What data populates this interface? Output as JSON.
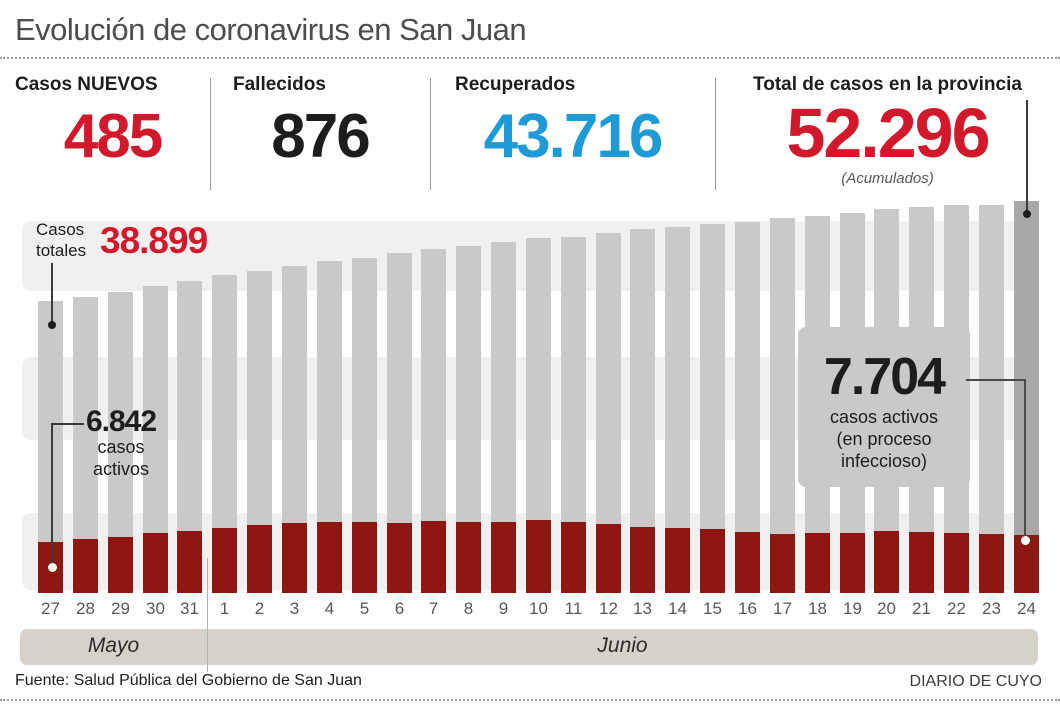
{
  "header": {
    "title": "Evolución de coronavirus en San Juan"
  },
  "stats": [
    {
      "label": "Casos NUEVOS",
      "value": "485",
      "color": "#d2192b"
    },
    {
      "label": "Fallecidos",
      "value": "876",
      "color": "#1d1d1b"
    },
    {
      "label": "Recuperados",
      "value": "43.716",
      "color": "#1e9bd7"
    },
    {
      "label": "Total de casos en la provincia",
      "value": "52.296",
      "note": "(Acumulados)",
      "color": "#d2192b"
    }
  ],
  "chart_data": {
    "type": "bar",
    "categories": [
      "27",
      "28",
      "29",
      "30",
      "31",
      "1",
      "2",
      "3",
      "4",
      "5",
      "6",
      "7",
      "8",
      "9",
      "10",
      "11",
      "12",
      "13",
      "14",
      "15",
      "16",
      "17",
      "18",
      "19",
      "20",
      "21",
      "22",
      "23",
      "24"
    ],
    "series": [
      {
        "name": "Casos totales",
        "color": "#c9c9c9",
        "values": [
          38899,
          39490,
          40150,
          40950,
          41620,
          42420,
          42950,
          43620,
          44290,
          44690,
          45360,
          45890,
          46290,
          46820,
          47360,
          47490,
          48020,
          48560,
          48820,
          49220,
          49490,
          50020,
          50290,
          50690,
          51230,
          51490,
          51700,
          51811,
          52296
        ]
      },
      {
        "name": "Casos activos",
        "color": "#8e1712",
        "values": [
          6842,
          7200,
          7470,
          8000,
          8270,
          8670,
          9070,
          9340,
          9470,
          9470,
          9340,
          9600,
          9470,
          9470,
          9740,
          9470,
          9200,
          8800,
          8670,
          8540,
          8140,
          7870,
          8000,
          8000,
          8270,
          8140,
          8000,
          7870,
          7704
        ]
      }
    ],
    "highlight_last_bar_color": "#a8a8a8",
    "ylim": [
      0,
      52296
    ],
    "grid": "off",
    "legend": "annotations-inline",
    "months": [
      {
        "label": "Mayo",
        "span_days": 5
      },
      {
        "label": "Junio",
        "span_days": 24
      }
    ],
    "annotations": {
      "first_total": {
        "label_lines": [
          "Casos",
          "totales"
        ],
        "value": "38.899"
      },
      "first_active": {
        "value": "6.842",
        "label_lines": [
          "casos",
          "activos"
        ]
      },
      "last_active": {
        "value": "7.704",
        "label_lines": [
          "casos activos",
          "(en proceso",
          "infeccioso)"
        ]
      }
    }
  },
  "footer": {
    "source": "Fuente: Salud Pública del Gobierno de San Juan",
    "credit": "DIARIO DE CUYO"
  }
}
